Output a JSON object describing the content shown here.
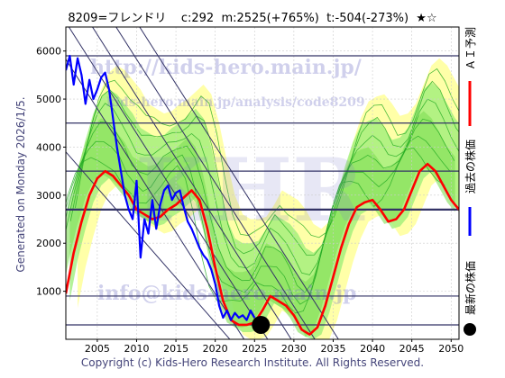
{
  "header": {
    "title": "8209=フレンドリ    c:292  m:2525(+765%)  t:-504(-273%)  ★☆"
  },
  "side_label": "Generated on Monday 2026/1/5.",
  "copyright": "Copyright (c) Kids-Hero Research Institute. All Rights Reserved.",
  "watermarks": {
    "url": "http://kids-hero.main.jp/",
    "analysis": "kids-hero.main.jp/analysis/code8209",
    "big": "KHR",
    "email": "info@kids-hero.main.jp"
  },
  "legend": {
    "ai_forecast": "ＡＩ予測",
    "past_price": "過去の株価",
    "latest_price": "最新の株価"
  },
  "colors": {
    "ai_line": "#ff0000",
    "past_line": "#0000ff",
    "latest_dot": "#000000",
    "band_green": "#99ee77",
    "band_yellow": "#ffff99",
    "band_lines": "#22aa22",
    "hlines": "#333366",
    "diagonals": "#333366"
  },
  "chart_data": {
    "type": "line",
    "xlim": [
      2001,
      2051
    ],
    "ylim": [
      0,
      6500
    ],
    "x_ticks": [
      2005,
      2010,
      2015,
      2020,
      2025,
      2030,
      2035,
      2040,
      2045,
      2050
    ],
    "y_ticks": [
      1000,
      2000,
      3000,
      4000,
      5000,
      6000
    ],
    "grid": true,
    "horizontal_lines": [
      300,
      900,
      2700,
      3500,
      4500,
      5900
    ],
    "thick_horizontal_line": 2700,
    "series": [
      {
        "name": "過去の株価",
        "x": [
          2001.0,
          2001.5,
          2002.0,
          2002.5,
          2003.0,
          2003.5,
          2004.0,
          2004.5,
          2005.0,
          2005.5,
          2006.0,
          2006.5,
          2007.0,
          2007.5,
          2008.0,
          2008.5,
          2009.0,
          2009.5,
          2010.0,
          2010.5,
          2011.0,
          2011.5,
          2012.0,
          2012.5,
          2013.0,
          2013.5,
          2014.0,
          2014.5,
          2015.0,
          2015.5,
          2016.0,
          2016.5,
          2017.0,
          2017.5,
          2018.0,
          2018.5,
          2019.0,
          2019.5,
          2020.0,
          2020.5,
          2021.0,
          2021.5,
          2022.0,
          2022.5,
          2023.0,
          2023.5,
          2024.0,
          2024.5,
          2025.0
        ],
        "values": [
          5600,
          5900,
          5300,
          5850,
          5500,
          4900,
          5400,
          5000,
          5200,
          5450,
          5550,
          5200,
          4600,
          4000,
          3500,
          3000,
          2700,
          2500,
          3300,
          1700,
          2500,
          2200,
          2900,
          2300,
          2800,
          3100,
          3200,
          2900,
          3050,
          3100,
          2750,
          2450,
          2300,
          2100,
          1900,
          1750,
          1650,
          1450,
          1150,
          700,
          450,
          600,
          400,
          550,
          450,
          500,
          400,
          600,
          450
        ]
      },
      {
        "name": "ＡＩ予測",
        "x": [
          2001.0,
          2002.0,
          2003.0,
          2004.0,
          2005.0,
          2006.0,
          2007.0,
          2008.0,
          2009.0,
          2010.0,
          2011.0,
          2012.0,
          2013.0,
          2014.0,
          2015.0,
          2016.0,
          2017.0,
          2018.0,
          2019.0,
          2020.0,
          2021.0,
          2022.0,
          2023.0,
          2024.0,
          2025.0,
          2026.0,
          2027.0,
          2028.0,
          2029.0,
          2030.0,
          2031.0,
          2032.0,
          2033.0,
          2034.0,
          2035.0,
          2036.0,
          2037.0,
          2038.0,
          2039.0,
          2040.0,
          2041.0,
          2042.0,
          2043.0,
          2044.0,
          2045.0,
          2046.0,
          2047.0,
          2048.0,
          2049.0,
          2050.0,
          2051.0
        ],
        "values": [
          950,
          1800,
          2450,
          3000,
          3350,
          3500,
          3400,
          3200,
          3000,
          2700,
          2600,
          2500,
          2550,
          2700,
          2800,
          2950,
          3100,
          2900,
          2300,
          1500,
          800,
          400,
          300,
          300,
          350,
          600,
          900,
          800,
          700,
          500,
          200,
          100,
          250,
          700,
          1300,
          1900,
          2400,
          2750,
          2850,
          2900,
          2700,
          2450,
          2500,
          2700,
          3100,
          3500,
          3650,
          3500,
          3200,
          2900,
          2700
        ]
      }
    ],
    "latest_point": {
      "x": 2025.8,
      "y": 300
    }
  }
}
